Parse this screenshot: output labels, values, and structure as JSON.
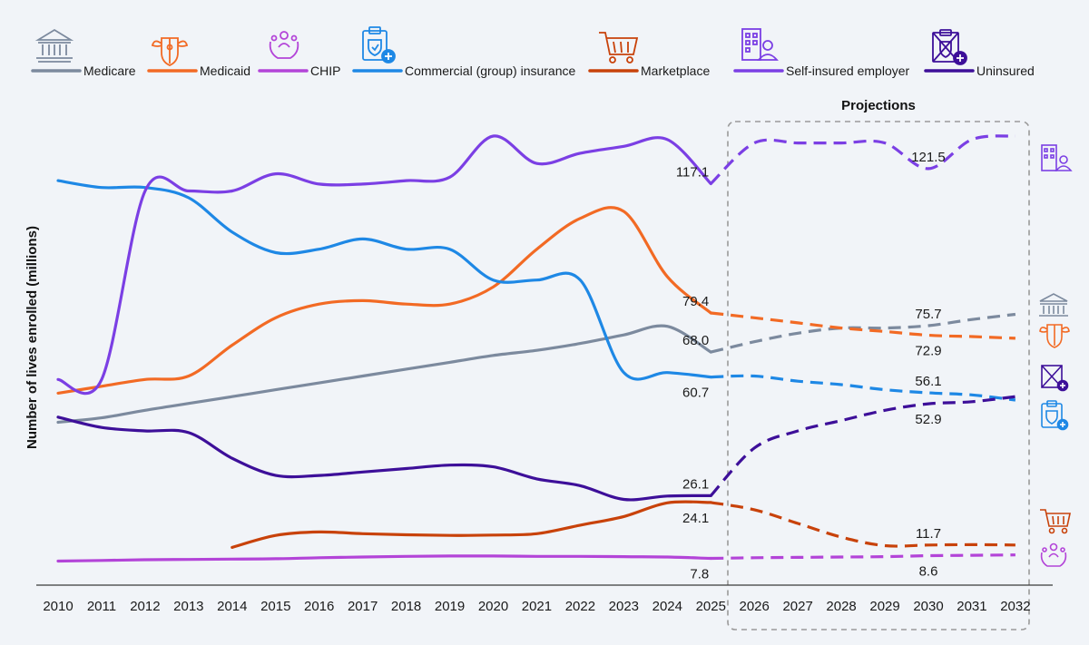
{
  "chart_data": {
    "type": "line",
    "ylabel": "Number of lives enrolled (millions)",
    "projection_label": "Projections",
    "projection_start": 2025,
    "grid": false,
    "legend_position": "top",
    "x": [
      2010,
      2011,
      2012,
      2013,
      2014,
      2015,
      2016,
      2017,
      2018,
      2019,
      2020,
      2021,
      2022,
      2023,
      2024,
      2025,
      2026,
      2027,
      2028,
      2029,
      2030,
      2031,
      2032
    ],
    "ylim": [
      0,
      131
    ],
    "series": [
      {
        "name": "Medicare",
        "key": "medicare",
        "color": "#7c8a9e",
        "icon": "bank-icon",
        "values": [
          47.5,
          48.8,
          51,
          53,
          55,
          57,
          59,
          61,
          63,
          65,
          67,
          68.5,
          70.5,
          73,
          75.5,
          68.0,
          71,
          73.5,
          75,
          75,
          75.7,
          77.5,
          79
        ],
        "labels": [
          {
            "x": 2025,
            "text": "68.0",
            "pos": "above"
          },
          {
            "x": 2030,
            "text": "75.7",
            "pos": "above"
          }
        ]
      },
      {
        "name": "Medicaid",
        "key": "medicaid",
        "color": "#f26a24",
        "icon": "caduceus-shield-icon",
        "values": [
          56,
          58,
          60,
          61,
          70,
          78,
          82,
          83,
          82,
          82,
          87,
          98,
          107,
          109,
          90,
          79.4,
          78,
          76.5,
          75,
          74,
          72.9,
          72.5,
          72
        ],
        "labels": [
          {
            "x": 2025,
            "text": "79.4",
            "pos": "above"
          },
          {
            "x": 2030,
            "text": "72.9",
            "pos": "below"
          }
        ]
      },
      {
        "name": "CHIP",
        "key": "chip",
        "color": "#b344d8",
        "icon": "family-care-icon",
        "values": [
          7,
          7.2,
          7.4,
          7.5,
          7.6,
          7.7,
          8,
          8.2,
          8.4,
          8.5,
          8.5,
          8.4,
          8.4,
          8.3,
          8.2,
          7.8,
          8,
          8.1,
          8.2,
          8.3,
          8.6,
          8.7,
          8.8
        ],
        "labels": [
          {
            "x": 2025,
            "text": "7.8",
            "pos": "below"
          },
          {
            "x": 2030,
            "text": "8.6",
            "pos": "below"
          }
        ]
      },
      {
        "name": "Commercial (group) insurance",
        "key": "commercial",
        "color": "#1e88e5",
        "icon": "clipboard-shield-icon",
        "values": [
          118,
          116,
          116,
          113,
          103,
          97,
          98,
          101,
          98,
          98,
          89,
          89,
          89,
          62,
          62,
          60.7,
          61,
          59.5,
          58.5,
          57,
          56.1,
          55.5,
          54
        ],
        "labels": [
          {
            "x": 2025,
            "text": "60.7",
            "pos": "below"
          },
          {
            "x": 2030,
            "text": "56.1",
            "pos": "above"
          }
        ]
      },
      {
        "name": "Marketplace",
        "key": "marketplace",
        "color": "#c8420a",
        "icon": "shopping-cart-icon",
        "values": [
          null,
          null,
          null,
          null,
          11,
          14.5,
          15.5,
          15,
          14.7,
          14.5,
          14.6,
          15,
          17.5,
          20,
          24,
          24.1,
          22,
          18,
          14,
          11.5,
          11.7,
          11.8,
          11.7
        ],
        "labels": [
          {
            "x": 2025,
            "text": "24.1",
            "pos": "below"
          },
          {
            "x": 2030,
            "text": "11.7",
            "pos": "above"
          }
        ]
      },
      {
        "name": "Self-insured employer",
        "key": "selfinsured",
        "color": "#7b3fe4",
        "icon": "employer-building-icon",
        "values": [
          60,
          60,
          115,
          115,
          115,
          120,
          117,
          117,
          118,
          119,
          131,
          123,
          126,
          128,
          130,
          117.1,
          129,
          129,
          129,
          129,
          121.5,
          130,
          131
        ],
        "labels": [
          {
            "x": 2025,
            "text": "117.1",
            "pos": "above"
          },
          {
            "x": 2030,
            "text": "121.5",
            "pos": "above"
          }
        ]
      },
      {
        "name": "Uninsured",
        "key": "uninsured",
        "color": "#3d0f99",
        "icon": "crossed-clipboard-icon",
        "values": [
          49,
          46,
          45,
          44.5,
          37,
          32,
          32,
          33,
          34,
          35,
          34.5,
          31,
          29,
          25,
          26,
          26.1,
          40,
          45,
          48,
          51,
          52.9,
          53.5,
          55
        ],
        "labels": [
          {
            "x": 2025,
            "text": "26.1",
            "pos": "above"
          },
          {
            "x": 2030,
            "text": "52.9",
            "pos": "below"
          }
        ]
      }
    ]
  }
}
